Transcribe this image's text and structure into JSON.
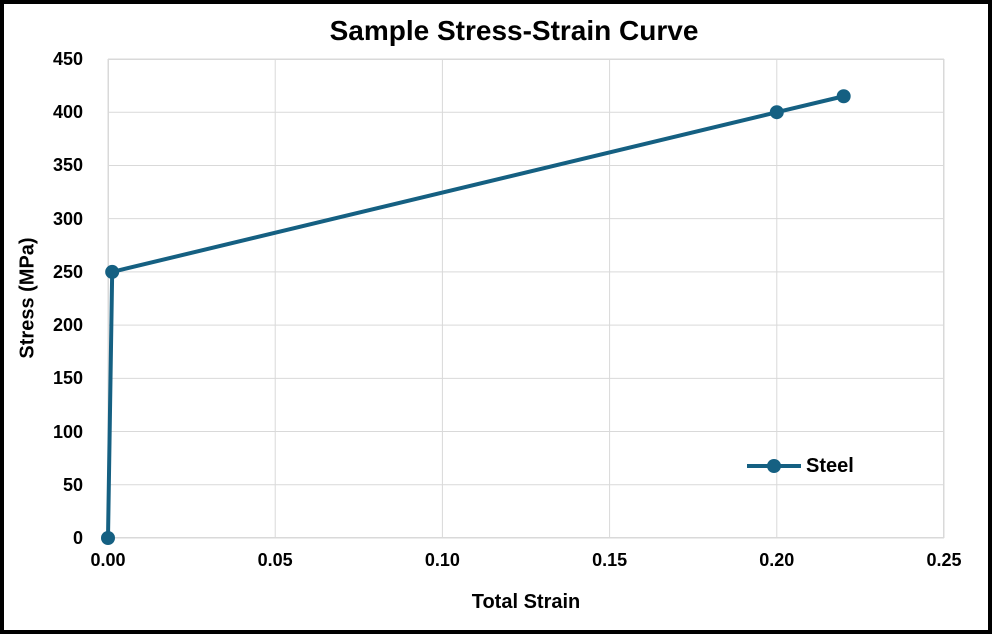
{
  "frame": {
    "background": "#FFFFFF",
    "border_color": "#000000"
  },
  "chart_data": {
    "type": "line",
    "title": "Sample Stress-Strain Curve",
    "xlabel": "Total Strain",
    "ylabel": "Stress (MPa)",
    "xlim": [
      0,
      0.25
    ],
    "ylim": [
      0,
      450
    ],
    "x_ticks": [
      "0.00",
      "0.05",
      "0.10",
      "0.15",
      "0.20",
      "0.25"
    ],
    "x_tick_values": [
      0,
      0.05,
      0.1,
      0.15,
      0.2,
      0.25
    ],
    "y_ticks": [
      "0",
      "50",
      "100",
      "150",
      "200",
      "250",
      "300",
      "350",
      "400",
      "450"
    ],
    "y_tick_values": [
      0,
      50,
      100,
      150,
      200,
      250,
      300,
      350,
      400,
      450
    ],
    "grid": true,
    "gridline_color": "#D9D9D9",
    "plot_border_color": "#D9D9D9",
    "text_color": "#000000",
    "legend_position": "inside-right",
    "series": [
      {
        "name": "Steel",
        "color": "#156082",
        "marker": "circle",
        "line_width": 4,
        "marker_radius": 7,
        "x": [
          0,
          0.00125,
          0.2,
          0.22
        ],
        "y": [
          0,
          250,
          400,
          415
        ]
      }
    ]
  }
}
